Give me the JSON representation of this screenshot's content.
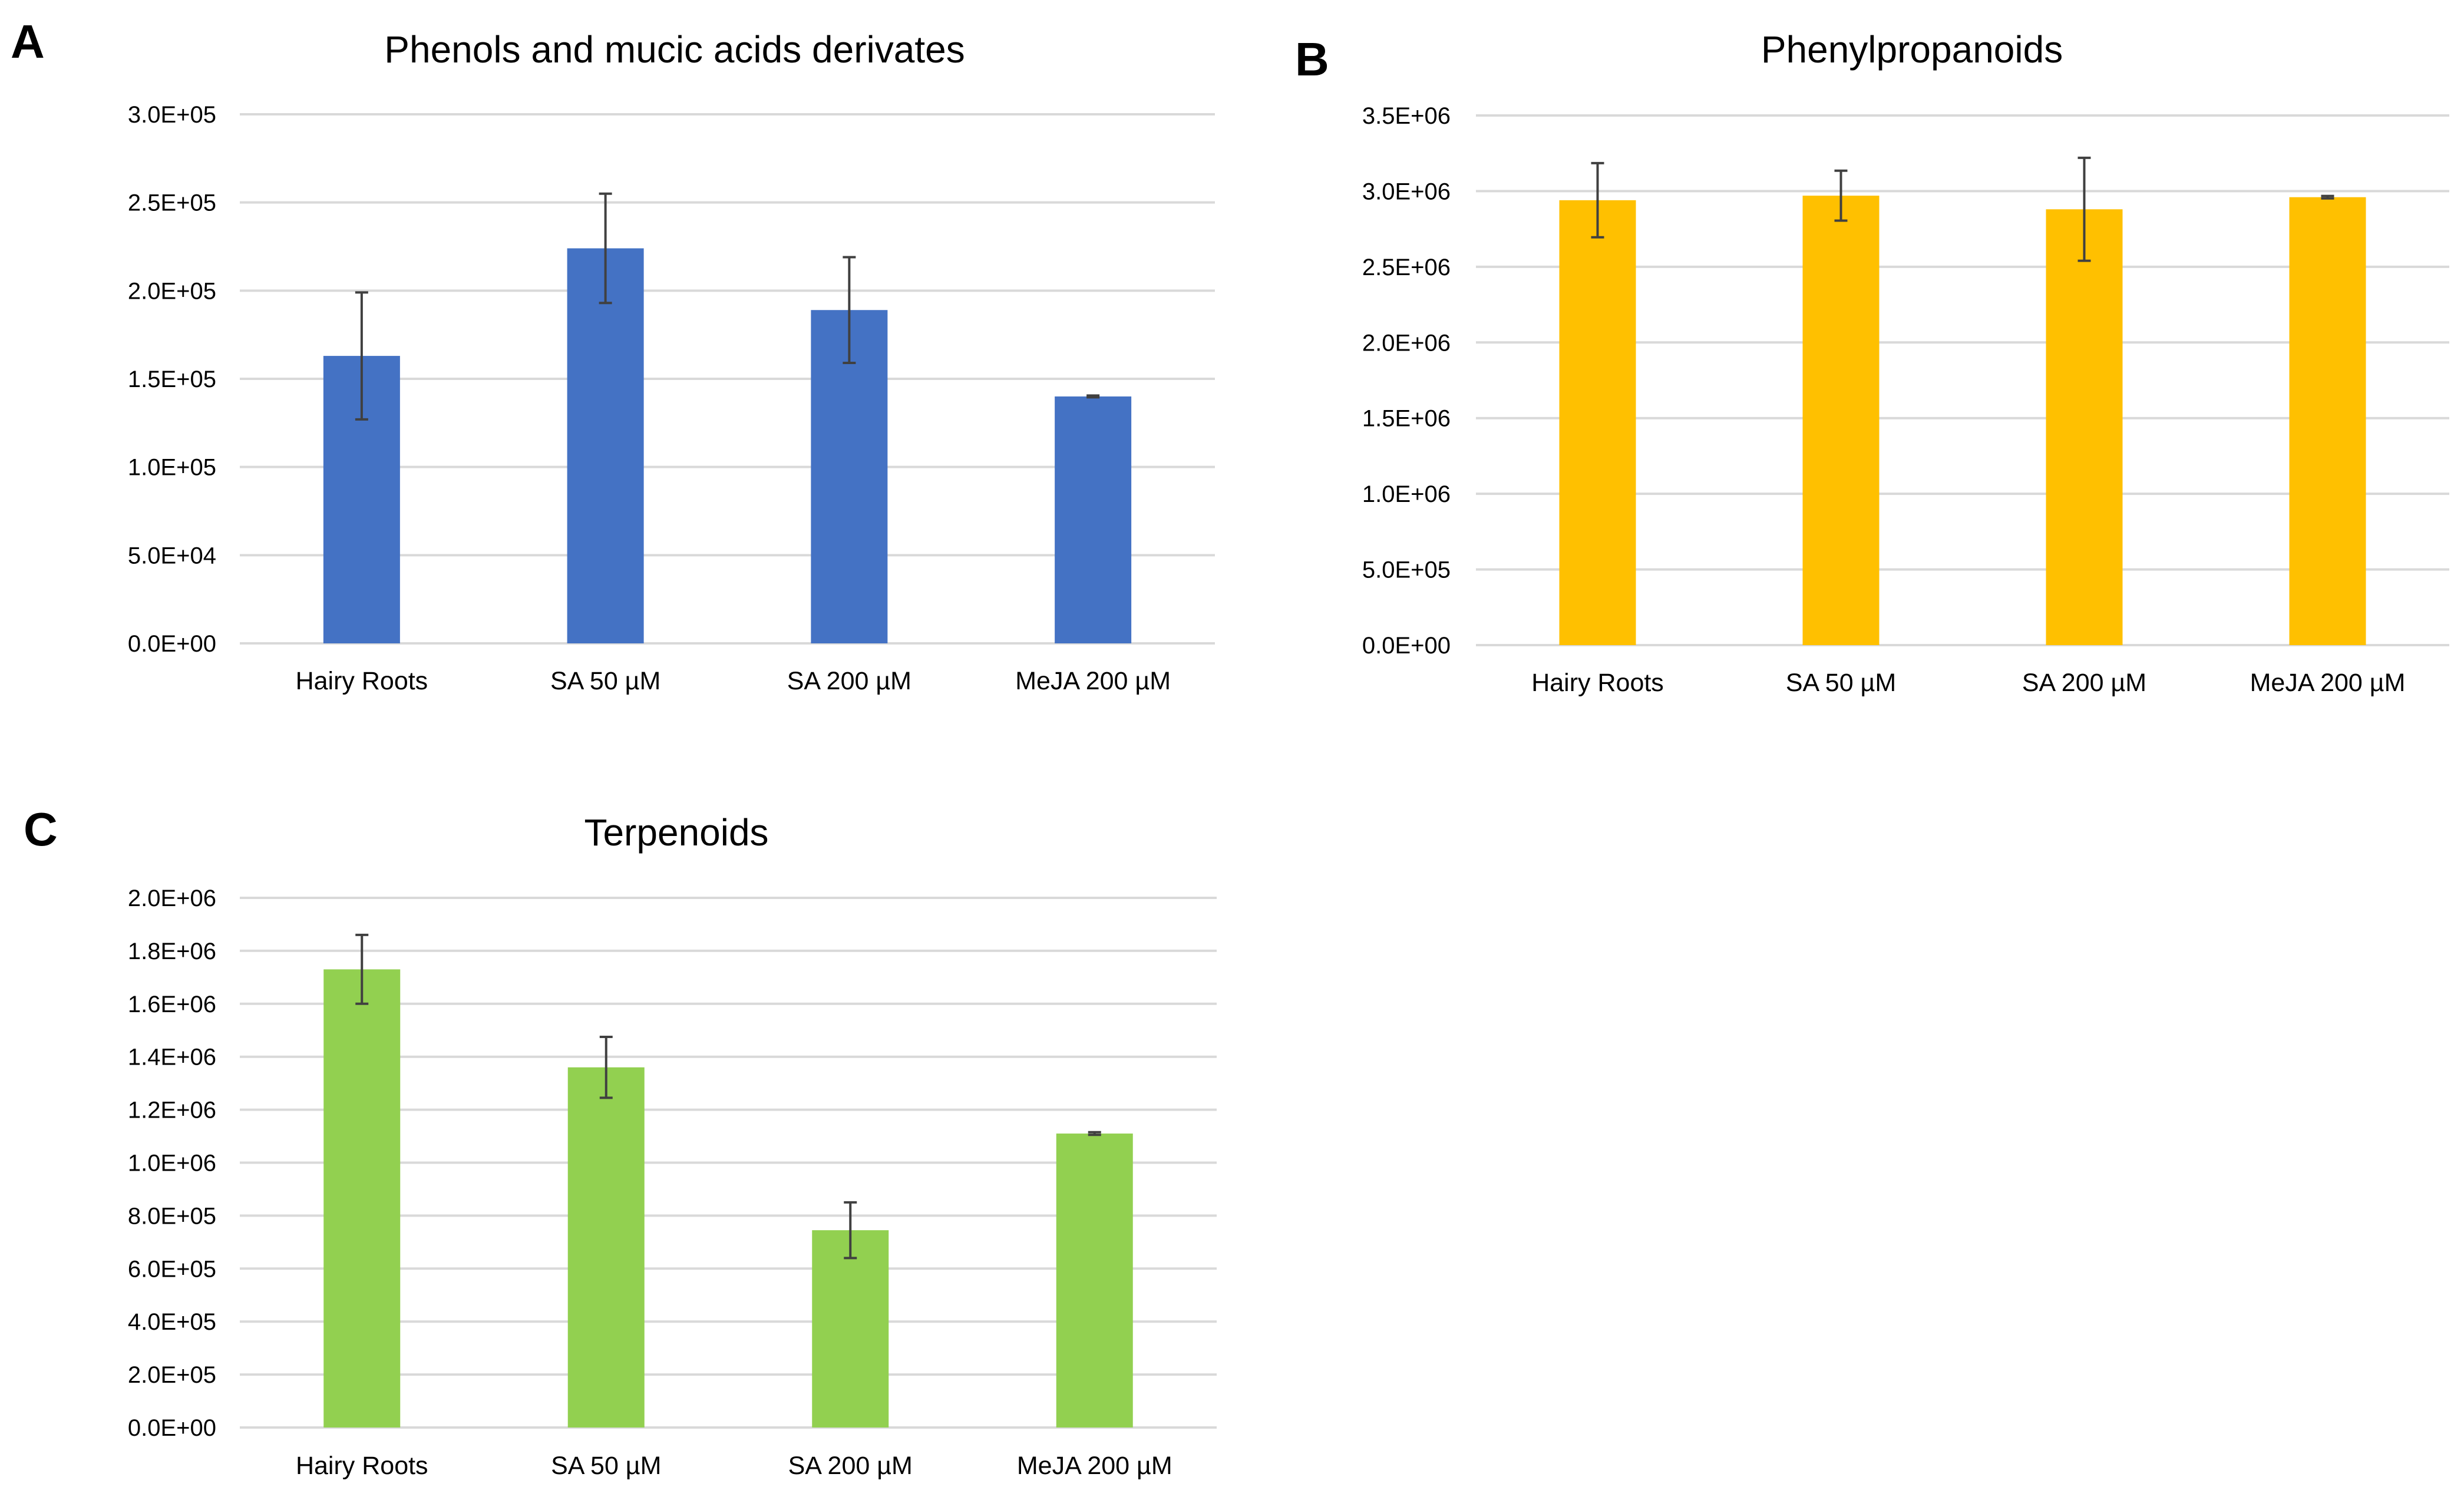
{
  "chart_data": [
    {
      "panel": "A",
      "type": "bar",
      "title": "Phenols and mucic acids derivates",
      "categories": [
        "Hairy Roots",
        "SA 50 µM",
        "SA 200 µM",
        "MeJA 200 µM"
      ],
      "values": [
        163000,
        224000,
        189000,
        140000
      ],
      "errors": [
        36000,
        31000,
        30000,
        500
      ],
      "ylim": [
        0,
        300000
      ],
      "yticks": [
        "0.0E+00",
        "5.0E+04",
        "1.0E+05",
        "1.5E+05",
        "2.0E+05",
        "2.5E+05",
        "3.0E+05"
      ],
      "bar_color": "#4472C4",
      "grid": true,
      "legend": false
    },
    {
      "panel": "B",
      "type": "bar",
      "title": "Phenylpropanoids",
      "categories": [
        "Hairy Roots",
        "SA 50 µM",
        "SA 200 µM",
        "MeJA 200 µM"
      ],
      "values": [
        2940000,
        2970000,
        2880000,
        2960000
      ],
      "errors": [
        245000,
        165000,
        340000,
        8000
      ],
      "ylim": [
        0,
        3500000
      ],
      "yticks": [
        "0.0E+00",
        "5.0E+05",
        "1.0E+06",
        "1.5E+06",
        "2.0E+06",
        "2.5E+06",
        "3.0E+06",
        "3.5E+06"
      ],
      "bar_color": "#FFC000",
      "grid": true,
      "legend": false
    },
    {
      "panel": "C",
      "type": "bar",
      "title": "Terpenoids",
      "categories": [
        "Hairy Roots",
        "SA 50 µM",
        "SA 200 µM",
        "MeJA 200 µM"
      ],
      "values": [
        1730000,
        1360000,
        745000,
        1110000
      ],
      "errors": [
        130000,
        115000,
        105000,
        5000
      ],
      "ylim": [
        0,
        2000000
      ],
      "yticks": [
        "0.0E+00",
        "2.0E+05",
        "4.0E+05",
        "6.0E+05",
        "8.0E+05",
        "1.0E+06",
        "1.2E+06",
        "1.4E+06",
        "1.6E+06",
        "1.8E+06",
        "2.0E+06"
      ],
      "bar_color": "#92D050",
      "grid": true,
      "legend": false
    }
  ]
}
